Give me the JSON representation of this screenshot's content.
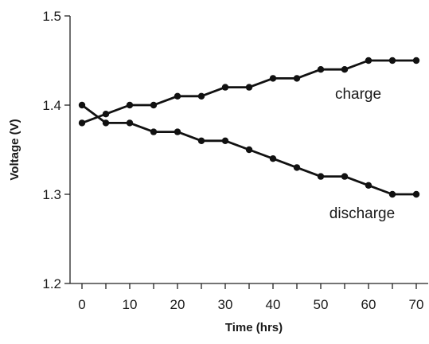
{
  "chart_data": {
    "type": "line",
    "title": "",
    "xlabel": "Time (hrs)",
    "ylabel": "Voltage (V)",
    "xlim": [
      -2.5,
      72.5
    ],
    "ylim": [
      1.2,
      1.5
    ],
    "x_ticks": [
      0,
      10,
      20,
      30,
      40,
      50,
      60,
      70
    ],
    "y_ticks": [
      1.2,
      1.3,
      1.4,
      1.5
    ],
    "y_tick_labels": [
      "1.2",
      "1.3",
      "1.4",
      "1.5"
    ],
    "grid": false,
    "legend": "none",
    "x": [
      0,
      5,
      10,
      15,
      20,
      25,
      30,
      35,
      40,
      45,
      50,
      55,
      60,
      65,
      70
    ],
    "series": [
      {
        "name": "charge",
        "color": "#111111",
        "values": [
          1.38,
          1.39,
          1.4,
          1.4,
          1.41,
          1.41,
          1.42,
          1.42,
          1.43,
          1.43,
          1.44,
          1.44,
          1.45,
          1.45,
          1.45
        ]
      },
      {
        "name": "discharge",
        "color": "#111111",
        "values": [
          1.4,
          1.38,
          1.38,
          1.37,
          1.37,
          1.36,
          1.36,
          1.35,
          1.34,
          1.33,
          1.32,
          1.32,
          1.31,
          1.3,
          1.3
        ]
      }
    ]
  }
}
